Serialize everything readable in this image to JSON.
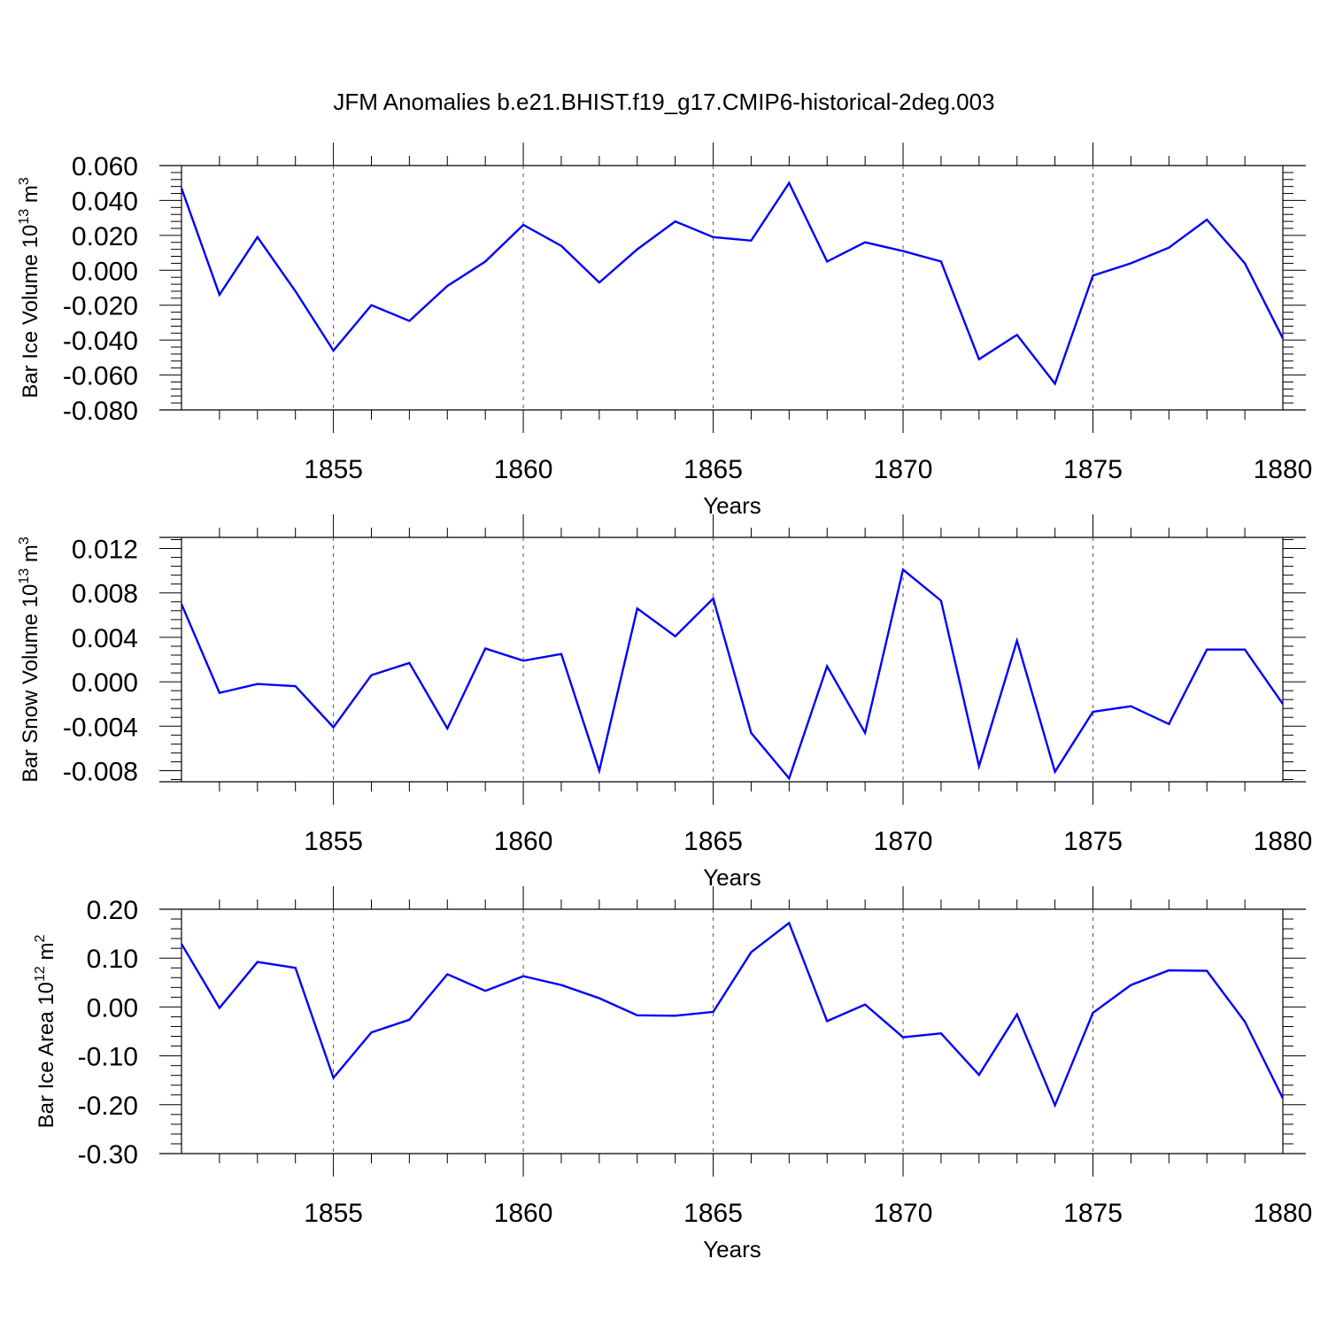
{
  "title": "JFM Anomalies b.e21.BHIST.f19_g17.CMIP6-historical-2deg.003",
  "colors": {
    "line": "#0000ff",
    "axis": "#000000",
    "grid": "#555555",
    "background": "#ffffff"
  },
  "chart_data": [
    {
      "type": "line",
      "ylabel": "Bar Ice Volume 10",
      "ylabel_exp": "13",
      "ylabel_unit": "m",
      "ylabel_unit_exp": "3",
      "xlabel": "Years",
      "xlim": [
        1851,
        1880
      ],
      "ylim": [
        -0.08,
        0.06
      ],
      "yticks": [
        -0.08,
        -0.06,
        -0.04,
        -0.02,
        0.0,
        0.02,
        0.04,
        0.06
      ],
      "ytick_labels": [
        "-0.080",
        "-0.060",
        "-0.040",
        "-0.020",
        "0.000",
        "0.020",
        "0.040",
        "0.060"
      ],
      "xticks": [
        1855,
        1860,
        1865,
        1870,
        1875,
        1880
      ],
      "xtick_labels": [
        "1855",
        "1860",
        "1865",
        "1870",
        "1875",
        "1880"
      ],
      "grid": "dashed vertical at major x ticks",
      "x": [
        1851,
        1852,
        1853,
        1854,
        1855,
        1856,
        1857,
        1858,
        1859,
        1860,
        1861,
        1862,
        1863,
        1864,
        1865,
        1866,
        1867,
        1868,
        1869,
        1870,
        1871,
        1872,
        1873,
        1874,
        1875,
        1876,
        1877,
        1878,
        1879,
        1880
      ],
      "y": [
        0.047,
        -0.014,
        0.019,
        -0.012,
        -0.046,
        -0.02,
        -0.029,
        -0.009,
        0.005,
        0.026,
        0.014,
        -0.007,
        0.012,
        0.028,
        0.019,
        0.017,
        0.05,
        0.005,
        0.016,
        0.011,
        0.005,
        -0.051,
        -0.037,
        -0.065,
        -0.003,
        0.004,
        0.013,
        0.029,
        0.004,
        -0.039
      ]
    },
    {
      "type": "line",
      "ylabel": "Bar Snow Volume 10",
      "ylabel_exp": "13",
      "ylabel_unit": "m",
      "ylabel_unit_exp": "3",
      "xlabel": "Years",
      "xlim": [
        1851,
        1880
      ],
      "ylim": [
        -0.009,
        0.013
      ],
      "yticks": [
        -0.008,
        -0.004,
        0.0,
        0.004,
        0.008,
        0.012
      ],
      "ytick_labels": [
        "-0.008",
        "-0.004",
        "0.000",
        "0.004",
        "0.008",
        "0.012"
      ],
      "xticks": [
        1855,
        1860,
        1865,
        1870,
        1875,
        1880
      ],
      "xtick_labels": [
        "1855",
        "1860",
        "1865",
        "1870",
        "1875",
        "1880"
      ],
      "grid": "dashed vertical at major x ticks",
      "x": [
        1851,
        1852,
        1853,
        1854,
        1855,
        1856,
        1857,
        1858,
        1859,
        1860,
        1861,
        1862,
        1863,
        1864,
        1865,
        1866,
        1867,
        1868,
        1869,
        1870,
        1871,
        1872,
        1873,
        1874,
        1875,
        1876,
        1877,
        1878,
        1879,
        1880
      ],
      "y": [
        0.007,
        -0.001,
        -0.0002,
        -0.0004,
        -0.0041,
        0.0006,
        0.0017,
        -0.0042,
        0.003,
        0.0019,
        0.0025,
        -0.008,
        0.0066,
        0.0041,
        0.0075,
        -0.0046,
        -0.0087,
        0.0014,
        -0.0046,
        0.0101,
        0.0073,
        -0.0076,
        0.0037,
        -0.0081,
        -0.0027,
        -0.0022,
        -0.0038,
        0.0029,
        0.0029,
        -0.002
      ]
    },
    {
      "type": "line",
      "ylabel": "Bar Ice Area 10",
      "ylabel_exp": "12",
      "ylabel_unit": "m",
      "ylabel_unit_exp": "2",
      "xlabel": "Years",
      "xlim": [
        1851,
        1880
      ],
      "ylim": [
        -0.3,
        0.2
      ],
      "yticks": [
        -0.3,
        -0.2,
        -0.1,
        0.0,
        0.1,
        0.2
      ],
      "ytick_labels": [
        "-0.30",
        "-0.20",
        "-0.10",
        "0.00",
        "0.10",
        "0.20"
      ],
      "xticks": [
        1855,
        1860,
        1865,
        1870,
        1875,
        1880
      ],
      "xtick_labels": [
        "1855",
        "1860",
        "1865",
        "1870",
        "1875",
        "1880"
      ],
      "grid": "dashed vertical at major x ticks",
      "x": [
        1851,
        1852,
        1853,
        1854,
        1855,
        1856,
        1857,
        1858,
        1859,
        1860,
        1861,
        1862,
        1863,
        1864,
        1865,
        1866,
        1867,
        1868,
        1869,
        1870,
        1871,
        1872,
        1873,
        1874,
        1875,
        1876,
        1877,
        1878,
        1879,
        1880
      ],
      "y": [
        0.129,
        -0.002,
        0.092,
        0.08,
        -0.145,
        -0.052,
        -0.026,
        0.067,
        0.033,
        0.063,
        0.045,
        0.018,
        -0.017,
        -0.018,
        -0.01,
        0.112,
        0.172,
        -0.029,
        0.005,
        -0.062,
        -0.054,
        -0.139,
        -0.015,
        -0.201,
        -0.012,
        0.045,
        0.075,
        0.074,
        -0.03,
        -0.187
      ]
    }
  ]
}
